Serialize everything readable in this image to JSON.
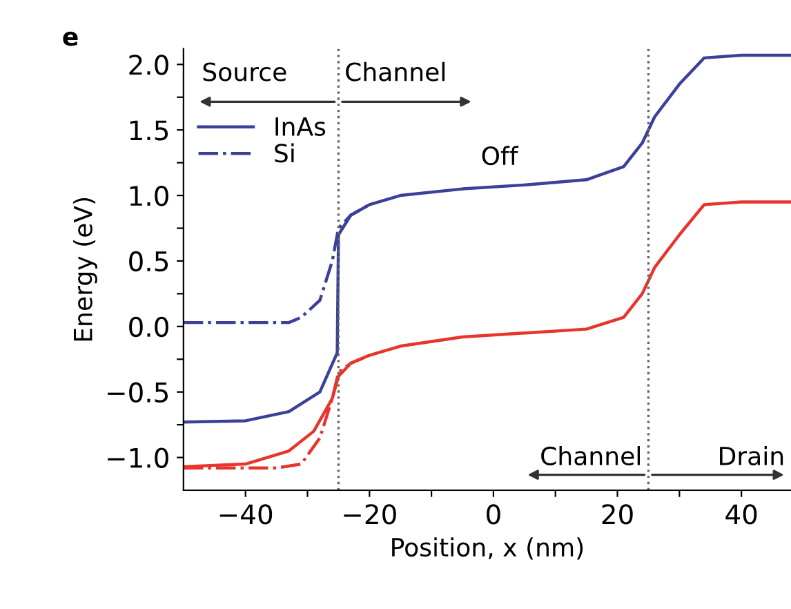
{
  "chart_data": {
    "type": "line",
    "xlabel": "Position, x (nm)",
    "ylabel": "Energy (eV)",
    "xlim": [
      -50,
      48
    ],
    "ylim": [
      -1.25,
      2.12
    ],
    "xticks": [
      {
        "value": -40,
        "label": "−40"
      },
      {
        "value": -30,
        "label": null
      },
      {
        "value": -20,
        "label": "−20"
      },
      {
        "value": -10,
        "label": null
      },
      0,
      {
        "value": 10,
        "label": null
      },
      20,
      {
        "value": 30,
        "label": null
      },
      40
    ],
    "yticks": [
      {
        "value": -1.0,
        "label": "−1.0"
      },
      {
        "value": -0.75,
        "label": null
      },
      {
        "value": -0.5,
        "label": "−0.5"
      },
      {
        "value": -0.25,
        "label": null
      },
      {
        "value": 0.0,
        "label": "0.0"
      },
      {
        "value": 0.25,
        "label": null
      },
      {
        "value": 0.5,
        "label": "0.5"
      },
      {
        "value": 0.75,
        "label": null
      },
      {
        "value": 1.0,
        "label": "1.0"
      },
      {
        "value": 1.25,
        "label": null
      },
      {
        "value": 1.5,
        "label": "1.5"
      },
      {
        "value": 1.75,
        "label": null
      },
      {
        "value": 2.0,
        "label": "2.0"
      }
    ],
    "grid": false,
    "legend": "top left",
    "series": [
      {
        "name": "InAs",
        "color": "#3b4199",
        "line_style": "solid",
        "x": [
          -50,
          -40,
          -33,
          -28,
          -25.2,
          -25,
          -23,
          -20,
          -15,
          -5,
          5,
          15,
          21,
          24,
          26,
          30,
          34,
          40,
          48
        ],
        "values": [
          -0.73,
          -0.72,
          -0.65,
          -0.5,
          -0.2,
          0.7,
          0.85,
          0.93,
          1.0,
          1.05,
          1.08,
          1.12,
          1.22,
          1.4,
          1.6,
          1.85,
          2.05,
          2.07,
          2.07
        ]
      },
      {
        "name": "Si",
        "color": "#3b4199",
        "line_style": "dashdot",
        "x": [
          -50,
          -33,
          -31,
          -28,
          -26,
          -25,
          -23,
          -20
        ],
        "values": [
          0.03,
          0.03,
          0.07,
          0.2,
          0.5,
          0.75,
          0.85,
          0.93
        ]
      },
      {
        "color": "#e8352b",
        "line_style": "solid",
        "x": [
          -50,
          -40,
          -33,
          -29,
          -26,
          -25,
          -23,
          -20,
          -15,
          -5,
          5,
          15,
          21,
          24,
          26,
          30,
          34,
          40,
          48
        ],
        "values": [
          -1.07,
          -1.05,
          -0.95,
          -0.8,
          -0.55,
          -0.38,
          -0.28,
          -0.22,
          -0.15,
          -0.08,
          -0.05,
          -0.02,
          0.07,
          0.25,
          0.45,
          0.7,
          0.93,
          0.95,
          0.95
        ]
      },
      {
        "color": "#e8352b",
        "line_style": "dashdot",
        "x": [
          -50,
          -35,
          -31,
          -28,
          -26,
          -25,
          -23,
          -20
        ],
        "values": [
          -1.08,
          -1.08,
          -1.05,
          -0.85,
          -0.55,
          -0.35,
          -0.28,
          -0.22
        ]
      }
    ],
    "ref_lines": [
      {
        "axis": "x",
        "value": -25,
        "color": "#666666",
        "line_style": "dotted"
      },
      {
        "axis": "x",
        "value": 25,
        "color": "#666666",
        "line_style": "dotted"
      }
    ],
    "annotations": [
      "e",
      "Source",
      "Channel",
      "Off",
      "Channel",
      "Drain"
    ]
  }
}
